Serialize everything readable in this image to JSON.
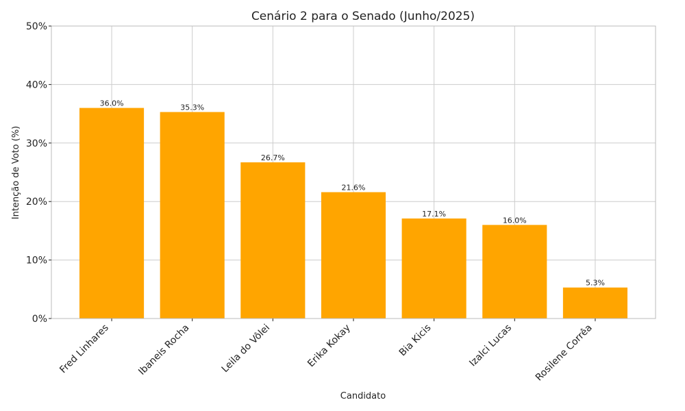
{
  "chart_data": {
    "type": "bar",
    "title": "Cenário 2 para o Senado (Junho/2025)",
    "xlabel": "Candidato",
    "ylabel": "Intenção de Voto (%)",
    "ylim": [
      0,
      50
    ],
    "yticks": [
      0,
      10,
      20,
      30,
      40,
      50
    ],
    "ytick_labels": [
      "0%",
      "10%",
      "20%",
      "30%",
      "40%",
      "50%"
    ],
    "grid": true,
    "bar_color": "#FFA500",
    "categories": [
      "Fred Linhares",
      "Ibaneis Rocha",
      "Leila do Vôlei",
      "Erika Kokay",
      "Bia Kicis",
      "Izalci Lucas",
      "Rosilene Corrêa"
    ],
    "values": [
      36.0,
      35.3,
      26.7,
      21.6,
      17.1,
      16.0,
      5.3
    ],
    "value_labels": [
      "36.0%",
      "35.3%",
      "26.7%",
      "21.6%",
      "17.1%",
      "16.0%",
      "5.3%"
    ]
  }
}
